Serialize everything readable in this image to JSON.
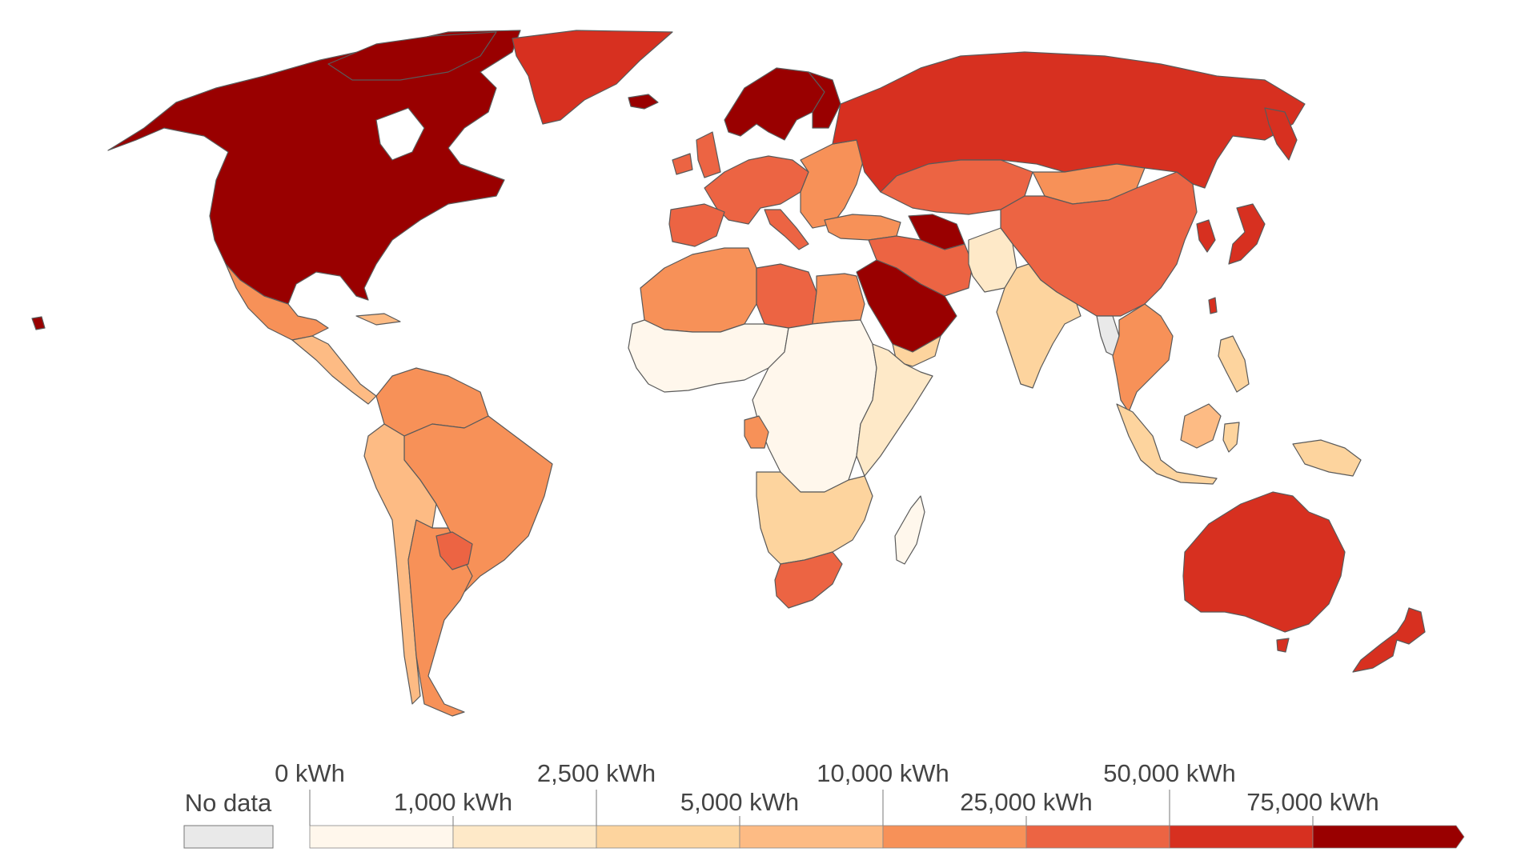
{
  "colors": {
    "no_data": "#e9e9e9",
    "bin_1": "#fff7ec",
    "bin_2": "#fee9c8",
    "bin_3": "#fdd49e",
    "bin_4": "#fdbb84",
    "bin_5": "#f79158",
    "bin_6": "#ec6443",
    "bin_7": "#d73020",
    "bin_8": "#990000",
    "border": "#5a5a5a"
  },
  "legend": {
    "no_data_label": "No data",
    "ticks_top": [
      "0 kWh",
      "2,500 kWh",
      "10,000 kWh",
      "50,000 kWh"
    ],
    "ticks_bottom": [
      "1,000 kWh",
      "5,000 kWh",
      "25,000 kWh",
      "75,000 kWh"
    ],
    "bins": [
      "bin_1",
      "bin_2",
      "bin_3",
      "bin_4",
      "bin_5",
      "bin_6",
      "bin_7",
      "bin_8"
    ]
  },
  "regions": [
    {
      "name": "north-america",
      "bin": "bin_8"
    },
    {
      "name": "greenland",
      "bin": "bin_7"
    },
    {
      "name": "mexico",
      "bin": "bin_5"
    },
    {
      "name": "central-america",
      "bin": "bin_4"
    },
    {
      "name": "south-america-north",
      "bin": "bin_5"
    },
    {
      "name": "brazil",
      "bin": "bin_5"
    },
    {
      "name": "south-america-west",
      "bin": "bin_4"
    },
    {
      "name": "argentina",
      "bin": "bin_5"
    },
    {
      "name": "paraguay",
      "bin": "bin_6"
    },
    {
      "name": "scandinavia",
      "bin": "bin_8"
    },
    {
      "name": "western-europe",
      "bin": "bin_6"
    },
    {
      "name": "eastern-europe",
      "bin": "bin_5"
    },
    {
      "name": "iberia",
      "bin": "bin_6"
    },
    {
      "name": "russia",
      "bin": "bin_7"
    },
    {
      "name": "central-asia",
      "bin": "bin_6"
    },
    {
      "name": "mongolia",
      "bin": "bin_5"
    },
    {
      "name": "china",
      "bin": "bin_6"
    },
    {
      "name": "iran-caspian",
      "bin": "bin_8"
    },
    {
      "name": "middle-east",
      "bin": "bin_6"
    },
    {
      "name": "arabia",
      "bin": "bin_8"
    },
    {
      "name": "yemen",
      "bin": "bin_3"
    },
    {
      "name": "pakistan-afghanistan",
      "bin": "bin_2"
    },
    {
      "name": "india",
      "bin": "bin_3"
    },
    {
      "name": "myanmar",
      "bin": "no_data"
    },
    {
      "name": "southeast-asia",
      "bin": "bin_5"
    },
    {
      "name": "korea-japan",
      "bin": "bin_7"
    },
    {
      "name": "north-africa-west",
      "bin": "bin_5"
    },
    {
      "name": "libya",
      "bin": "bin_6"
    },
    {
      "name": "egypt",
      "bin": "bin_5"
    },
    {
      "name": "west-africa",
      "bin": "bin_1"
    },
    {
      "name": "central-africa",
      "bin": "bin_1"
    },
    {
      "name": "east-africa",
      "bin": "bin_2"
    },
    {
      "name": "gabon",
      "bin": "bin_5"
    },
    {
      "name": "southern-africa",
      "bin": "bin_3"
    },
    {
      "name": "south-africa",
      "bin": "bin_6"
    },
    {
      "name": "madagascar",
      "bin": "bin_1"
    },
    {
      "name": "indonesia",
      "bin": "bin_3"
    },
    {
      "name": "borneo",
      "bin": "bin_4"
    },
    {
      "name": "new-guinea",
      "bin": "bin_3"
    },
    {
      "name": "australia",
      "bin": "bin_7"
    },
    {
      "name": "new-zealand",
      "bin": "bin_7"
    }
  ]
}
